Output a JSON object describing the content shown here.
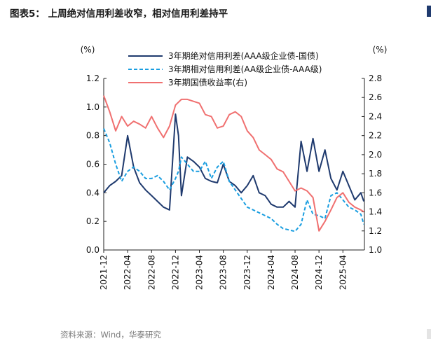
{
  "header": {
    "title": "图表5：   上周绝对信用利差收窄，相对信用利差持平"
  },
  "footer": {
    "source": "资料来源：Wind，华泰研究"
  },
  "chart_data": {
    "type": "line",
    "title": "上周绝对信用利差收窄，相对信用利差持平",
    "ylabel_left": "(%)",
    "ylabel_right": "(%)",
    "ylim_left": [
      0.0,
      1.2
    ],
    "ylim_right": [
      1.0,
      2.8
    ],
    "yticks_left": [
      "0.0",
      "0.2",
      "0.4",
      "0.6",
      "0.8",
      "1.0",
      "1.2"
    ],
    "yticks_right": [
      "1.0",
      "1.2",
      "1.4",
      "1.6",
      "1.8",
      "2.0",
      "2.2",
      "2.4",
      "2.6",
      "2.8"
    ],
    "xlim": [
      0,
      43.6
    ],
    "xticks": [
      {
        "label": "2021-12",
        "pos": 0
      },
      {
        "label": "2022-04",
        "pos": 4
      },
      {
        "label": "2022-08",
        "pos": 8
      },
      {
        "label": "2022-12",
        "pos": 12
      },
      {
        "label": "2023-04",
        "pos": 16
      },
      {
        "label": "2023-08",
        "pos": 20
      },
      {
        "label": "2023-12",
        "pos": 24
      },
      {
        "label": "2024-04",
        "pos": 28
      },
      {
        "label": "2024-08",
        "pos": 32
      },
      {
        "label": "2024-12",
        "pos": 36
      },
      {
        "label": "2025-04",
        "pos": 40
      }
    ],
    "legend": "top-center",
    "series": [
      {
        "name": "3年期绝对信用利差(AAA级企业债-国债)",
        "axis": "left",
        "color": "#1f3a6e",
        "style": "solid",
        "x": [
          0,
          1,
          2,
          3,
          4,
          5,
          6,
          7,
          8,
          9,
          10,
          11,
          12,
          12.5,
          13,
          14,
          15,
          16,
          17,
          18,
          19,
          20,
          21,
          22,
          23,
          24,
          25,
          26,
          27,
          28,
          29,
          30,
          31,
          32,
          33,
          34,
          35,
          36,
          37,
          38,
          39,
          40,
          41,
          42,
          43,
          43.5
        ],
        "y": [
          0.4,
          0.45,
          0.48,
          0.52,
          0.8,
          0.58,
          0.47,
          0.42,
          0.38,
          0.34,
          0.3,
          0.28,
          0.95,
          0.8,
          0.38,
          0.65,
          0.62,
          0.58,
          0.5,
          0.48,
          0.47,
          0.6,
          0.48,
          0.45,
          0.4,
          0.45,
          0.52,
          0.4,
          0.38,
          0.32,
          0.3,
          0.3,
          0.34,
          0.3,
          0.76,
          0.55,
          0.78,
          0.55,
          0.7,
          0.5,
          0.42,
          0.55,
          0.45,
          0.35,
          0.4,
          0.34
        ]
      },
      {
        "name": "3年期相对信用利差(AA级企业债-AAA级)",
        "axis": "left",
        "color": "#1a9ee0",
        "style": "dashed",
        "x": [
          0,
          1,
          2,
          3,
          4,
          5,
          6,
          7,
          8,
          9,
          10,
          11,
          12,
          12.5,
          13,
          14,
          15,
          16,
          17,
          18,
          19,
          20,
          21,
          22,
          23,
          24,
          25,
          26,
          27,
          28,
          29,
          30,
          31,
          32,
          33,
          34,
          35,
          36,
          37,
          38,
          39,
          40,
          41,
          42,
          43,
          43.5
        ],
        "y": [
          0.85,
          0.75,
          0.6,
          0.48,
          0.55,
          0.58,
          0.55,
          0.5,
          0.5,
          0.52,
          0.48,
          0.42,
          0.5,
          0.55,
          0.65,
          0.6,
          0.55,
          0.55,
          0.62,
          0.5,
          0.58,
          0.62,
          0.48,
          0.42,
          0.36,
          0.3,
          0.28,
          0.26,
          0.24,
          0.22,
          0.18,
          0.15,
          0.14,
          0.13,
          0.18,
          0.35,
          0.25,
          0.24,
          0.22,
          0.38,
          0.4,
          0.35,
          0.3,
          0.28,
          0.25,
          0.18
        ]
      },
      {
        "name": "3年期国债收益率(右)",
        "axis": "right",
        "color": "#f07070",
        "style": "solid",
        "x": [
          0,
          1,
          2,
          3,
          4,
          5,
          6,
          7,
          8,
          9,
          10,
          11,
          12,
          13,
          14,
          15,
          16,
          17,
          18,
          19,
          20,
          21,
          22,
          23,
          24,
          25,
          26,
          27,
          28,
          29,
          30,
          31,
          32,
          33,
          34,
          35,
          36,
          37,
          38,
          39,
          40,
          41,
          42,
          43,
          43.5
        ],
        "y": [
          2.62,
          2.45,
          2.25,
          2.4,
          2.3,
          2.35,
          2.32,
          2.28,
          2.4,
          2.28,
          2.18,
          2.3,
          2.52,
          2.58,
          2.58,
          2.56,
          2.54,
          2.42,
          2.4,
          2.28,
          2.3,
          2.42,
          2.45,
          2.4,
          2.25,
          2.18,
          2.05,
          2.0,
          1.95,
          1.85,
          1.82,
          1.72,
          1.62,
          1.65,
          1.62,
          1.55,
          1.2,
          1.3,
          1.42,
          1.55,
          1.6,
          1.5,
          1.45,
          1.42,
          1.4
        ]
      }
    ]
  }
}
